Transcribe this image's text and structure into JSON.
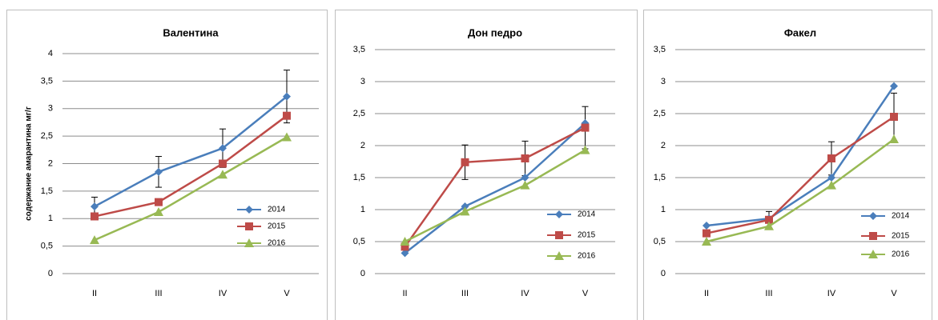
{
  "chart_data": [
    {
      "type": "line",
      "title": "Валентина",
      "y_label": "содержание амарантина мг/г",
      "categories": [
        "II",
        "III",
        "IV",
        "V"
      ],
      "series": [
        {
          "name": "2014",
          "color": "#4a7ebb",
          "marker": "diamond",
          "values": [
            1.22,
            1.85,
            2.28,
            3.22
          ],
          "errors": [
            0.17,
            0.28,
            0.35,
            0.48
          ]
        },
        {
          "name": "2015",
          "color": "#be4b48",
          "marker": "square",
          "values": [
            1.04,
            1.3,
            2.0,
            2.87
          ]
        },
        {
          "name": "2016",
          "color": "#98b954",
          "marker": "triangle",
          "values": [
            0.61,
            1.12,
            1.8,
            2.48
          ]
        }
      ],
      "ylim": [
        0,
        4
      ],
      "yticks": [
        0,
        {
          "value": 0.5,
          "label": "0,5"
        },
        1,
        {
          "value": 1.5,
          "label": "1,5"
        },
        2,
        {
          "value": 2.5,
          "label": "2,5"
        },
        3,
        {
          "value": 3.5,
          "label": "3,5"
        },
        4
      ],
      "grid": true
    },
    {
      "type": "line",
      "title": "Дон педро",
      "categories": [
        "II",
        "III",
        "IV",
        "V"
      ],
      "series": [
        {
          "name": "2014",
          "color": "#4a7ebb",
          "marker": "diamond",
          "values": [
            0.32,
            1.05,
            1.5,
            2.35
          ]
        },
        {
          "name": "2015",
          "color": "#be4b48",
          "marker": "square",
          "values": [
            0.42,
            1.74,
            1.8,
            2.28
          ],
          "errors": [
            null,
            0.27,
            0.27,
            0.33
          ]
        },
        {
          "name": "2016",
          "color": "#98b954",
          "marker": "triangle",
          "values": [
            0.5,
            0.97,
            1.38,
            1.93
          ]
        }
      ],
      "ylim": [
        0,
        3.5
      ],
      "yticks": [
        0,
        {
          "value": 0.5,
          "label": "0,5"
        },
        1,
        {
          "value": 1.5,
          "label": "1,5"
        },
        2,
        {
          "value": 2.5,
          "label": "2,5"
        },
        3,
        {
          "value": 3.5,
          "label": "3,5"
        }
      ],
      "grid": true
    },
    {
      "type": "line",
      "title": "Факел",
      "categories": [
        "II",
        "III",
        "IV",
        "V"
      ],
      "series": [
        {
          "name": "2014",
          "color": "#4a7ebb",
          "marker": "diamond",
          "values": [
            0.75,
            0.86,
            1.5,
            2.93
          ]
        },
        {
          "name": "2015",
          "color": "#be4b48",
          "marker": "square",
          "values": [
            0.63,
            0.84,
            1.8,
            2.45
          ],
          "errors": [
            null,
            0.13,
            0.26,
            0.37
          ]
        },
        {
          "name": "2016",
          "color": "#98b954",
          "marker": "triangle",
          "values": [
            0.5,
            0.74,
            1.38,
            2.1
          ]
        }
      ],
      "ylim": [
        0,
        3.5
      ],
      "yticks": [
        0,
        {
          "value": 0.5,
          "label": "0,5"
        },
        1,
        {
          "value": 1.5,
          "label": "1,5"
        },
        2,
        {
          "value": 2.5,
          "label": "2,5"
        },
        3,
        {
          "value": 3.5,
          "label": "3,5"
        }
      ],
      "grid": true
    }
  ]
}
